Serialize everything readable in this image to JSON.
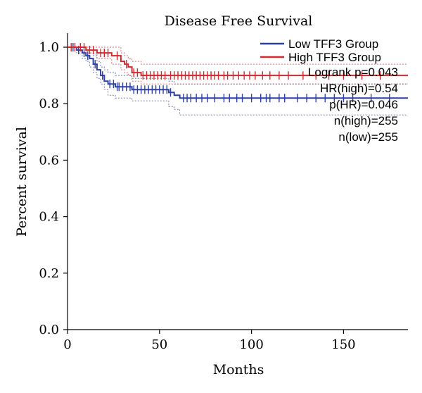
{
  "chart_data": {
    "type": "line",
    "title": "Disease Free Survival",
    "xlabel": "Months",
    "ylabel": "Percent survival",
    "xlim": [
      0,
      185
    ],
    "ylim": [
      0,
      1.05
    ],
    "x_ticks": [
      0,
      50,
      100,
      150
    ],
    "y_ticks": [
      0.0,
      0.2,
      0.4,
      0.6,
      0.8,
      1.0
    ],
    "y_tick_labels": [
      "0.0",
      "0.2",
      "0.4",
      "0.6",
      "0.8",
      "1.0"
    ],
    "legend_position": "top-right",
    "annotations": [
      "Logrank p=0.043",
      "HR(high)=0.54",
      "p(HR)=0.046",
      "n(high)=255",
      "n(low)=255"
    ],
    "series": [
      {
        "name": "Low TFF3 Group",
        "color": "#2b3fa8",
        "step_x": [
          0,
          5,
          8,
          10,
          12,
          14,
          16,
          18,
          20,
          22,
          26,
          30,
          35,
          45,
          55,
          58,
          61,
          185
        ],
        "step_y": [
          1.0,
          0.99,
          0.98,
          0.97,
          0.96,
          0.94,
          0.92,
          0.9,
          0.88,
          0.87,
          0.86,
          0.86,
          0.85,
          0.85,
          0.84,
          0.83,
          0.82,
          0.82
        ],
        "ci_upper": [
          1.0,
          1.0,
          1.0,
          0.99,
          0.98,
          0.97,
          0.95,
          0.93,
          0.92,
          0.91,
          0.9,
          0.9,
          0.89,
          0.89,
          0.88,
          0.87,
          0.87,
          0.87
        ],
        "ci_lower": [
          1.0,
          0.98,
          0.96,
          0.95,
          0.93,
          0.91,
          0.89,
          0.87,
          0.85,
          0.83,
          0.82,
          0.82,
          0.81,
          0.81,
          0.79,
          0.78,
          0.76,
          0.76
        ],
        "censor_x": [
          3,
          6,
          9,
          11,
          15,
          19,
          23,
          25,
          27,
          28,
          30,
          32,
          34,
          36,
          38,
          40,
          42,
          44,
          46,
          48,
          50,
          52,
          54,
          56,
          63,
          65,
          67,
          70,
          73,
          76,
          80,
          85,
          88,
          92,
          95,
          100,
          105,
          108,
          110,
          115,
          118,
          125,
          130,
          135,
          140,
          145,
          150,
          155,
          165,
          175
        ]
      },
      {
        "name": "High TFF3 Group",
        "color": "#d42a2f",
        "step_x": [
          0,
          10,
          16,
          24,
          29,
          31,
          33,
          35,
          40,
          185
        ],
        "step_y": [
          1.0,
          0.99,
          0.98,
          0.97,
          0.95,
          0.94,
          0.93,
          0.91,
          0.9,
          0.9
        ],
        "ci_upper": [
          1.0,
          1.0,
          1.0,
          1.0,
          0.98,
          0.97,
          0.96,
          0.95,
          0.94,
          0.94
        ],
        "ci_lower": [
          1.0,
          0.98,
          0.96,
          0.94,
          0.92,
          0.91,
          0.9,
          0.88,
          0.87,
          0.87
        ],
        "censor_x": [
          2,
          4,
          7,
          9,
          12,
          14,
          18,
          20,
          22,
          27,
          32,
          36,
          38,
          41,
          43,
          45,
          47,
          49,
          51,
          53,
          56,
          58,
          60,
          62,
          64,
          66,
          68,
          70,
          72,
          74,
          76,
          78,
          80,
          82,
          85,
          87,
          90,
          93,
          96,
          99,
          102,
          106,
          110,
          115,
          120,
          128,
          135,
          142,
          150,
          160,
          170
        ]
      }
    ]
  }
}
